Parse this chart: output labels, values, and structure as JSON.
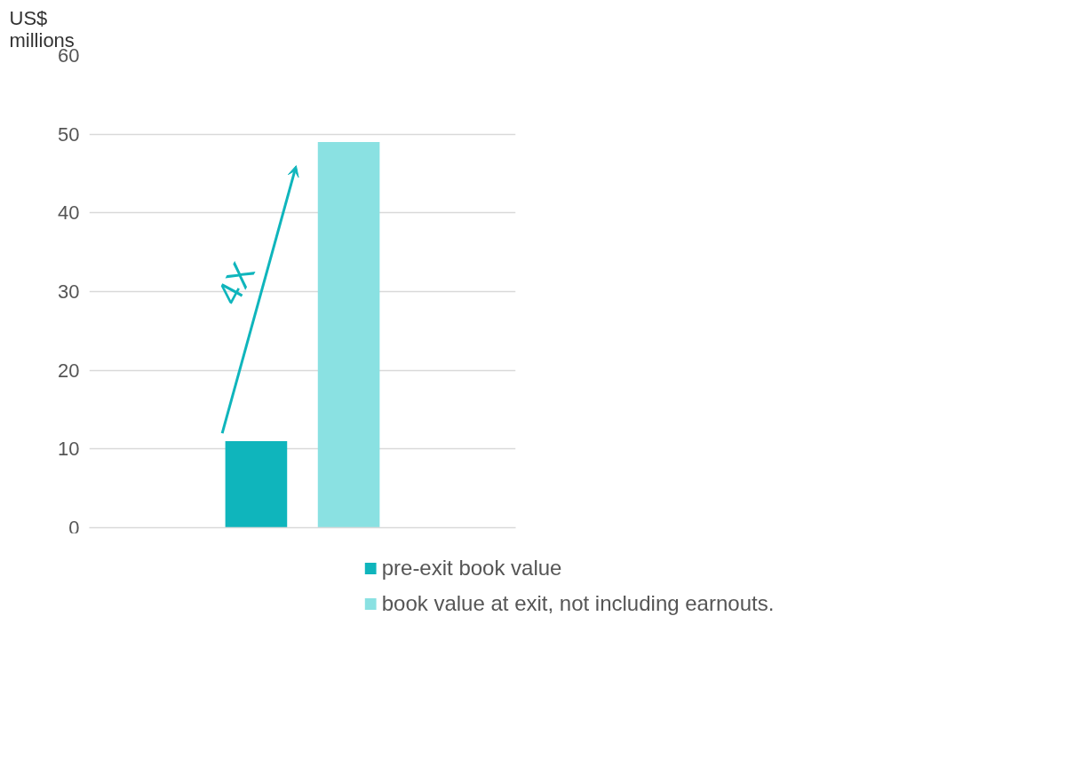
{
  "chart_data": {
    "type": "bar",
    "ylabel": "US$ millions",
    "categories": [
      null
    ],
    "series": [
      {
        "name": "pre-exit book value",
        "color": "#0fb5bc",
        "values": [
          11
        ]
      },
      {
        "name": "book value at exit, not including earnouts.",
        "color": "#8ae1e2",
        "values": [
          49
        ]
      }
    ],
    "ylim": [
      0,
      60
    ],
    "yticks": [
      0,
      10,
      20,
      30,
      40,
      50,
      60
    ],
    "grid": "y",
    "legend": "bottom",
    "tick_labels": "y",
    "annotations": [
      "4X"
    ]
  }
}
